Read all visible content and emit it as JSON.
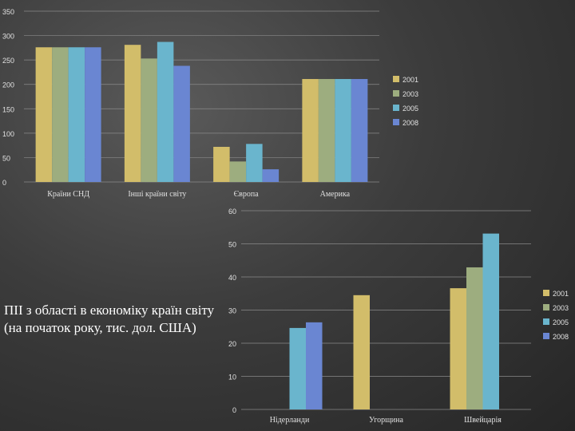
{
  "caption": "ПІІ з області в економіку країн світу (на початок року, тис. дол. США)",
  "colors": {
    "2001": "#d2bd6a",
    "2003": "#9dad7f",
    "2005": "#6ab5cd",
    "2008": "#6a86d2",
    "axis_text": "#e0e0e0",
    "grid": "#8a8a8a"
  },
  "chart_data": [
    {
      "type": "bar",
      "categories": [
        "Країни СНД",
        "Інші країни світу",
        "Європа",
        "Америка"
      ],
      "series": [
        {
          "name": "2001",
          "values": [
            276,
            281,
            72,
            211
          ]
        },
        {
          "name": "2003",
          "values": [
            276,
            253,
            42,
            211
          ]
        },
        {
          "name": "2005",
          "values": [
            276,
            287,
            78,
            211
          ]
        },
        {
          "name": "2008",
          "values": [
            276,
            238,
            26,
            211
          ]
        }
      ],
      "yticks": [
        0,
        50,
        100,
        150,
        200,
        250,
        300,
        350
      ],
      "ylim": [
        0,
        350
      ],
      "grid": true,
      "legend": "right"
    },
    {
      "type": "bar",
      "categories": [
        "Нідерланди",
        "Угорщина",
        "Швейцарія"
      ],
      "series": [
        {
          "name": "2001",
          "values": [
            0,
            34.5,
            36.6
          ]
        },
        {
          "name": "2003",
          "values": [
            0,
            0,
            42.9
          ]
        },
        {
          "name": "2005",
          "values": [
            24.6,
            0,
            53.1
          ]
        },
        {
          "name": "2008",
          "values": [
            26.3,
            0,
            0
          ]
        }
      ],
      "yticks": [
        0,
        10,
        20,
        30,
        40,
        50,
        60
      ],
      "ylim": [
        0,
        60
      ],
      "grid": true,
      "legend": "right"
    }
  ]
}
